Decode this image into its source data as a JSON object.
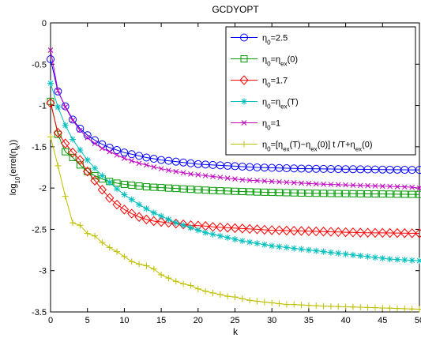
{
  "chart_data": {
    "type": "line",
    "title": "GCDYOPT",
    "xlabel": "k",
    "ylabel": "log10(errel(ηk))",
    "xlim": [
      0,
      50
    ],
    "ylim": [
      -3.5,
      0
    ],
    "xticks": [
      0,
      5,
      10,
      15,
      20,
      25,
      30,
      35,
      40,
      45,
      50
    ],
    "yticks": [
      0,
      -0.5,
      -1,
      -1.5,
      -2,
      -2.5,
      -3,
      -3.5
    ],
    "grid": false,
    "legend_position": "top-right",
    "x": [
      0,
      1,
      2,
      3,
      4,
      5,
      6,
      7,
      8,
      9,
      10,
      11,
      12,
      13,
      14,
      15,
      16,
      17,
      18,
      19,
      20,
      21,
      22,
      23,
      24,
      25,
      26,
      27,
      28,
      29,
      30,
      31,
      32,
      33,
      34,
      35,
      36,
      37,
      38,
      39,
      40,
      41,
      42,
      43,
      44,
      45,
      46,
      47,
      48,
      49,
      50
    ],
    "series": [
      {
        "name": "η0=2.5",
        "color": "#0000ff",
        "marker": "circle",
        "values": [
          -0.44,
          -0.83,
          -1.01,
          -1.17,
          -1.28,
          -1.36,
          -1.42,
          -1.47,
          -1.51,
          -1.54,
          -1.57,
          -1.59,
          -1.61,
          -1.63,
          -1.645,
          -1.66,
          -1.67,
          -1.68,
          -1.69,
          -1.7,
          -1.71,
          -1.715,
          -1.72,
          -1.725,
          -1.73,
          -1.735,
          -1.74,
          -1.745,
          -1.75,
          -1.752,
          -1.755,
          -1.757,
          -1.76,
          -1.762,
          -1.764,
          -1.766,
          -1.767,
          -1.768,
          -1.769,
          -1.77,
          -1.771,
          -1.772,
          -1.773,
          -1.774,
          -1.775,
          -1.776,
          -1.777,
          -1.778,
          -1.779,
          -1.78,
          -1.78
        ]
      },
      {
        "name": "η0=ηex(0)",
        "color": "#009900",
        "marker": "square",
        "values": [
          -0.95,
          -1.35,
          -1.56,
          -1.63,
          -1.72,
          -1.8,
          -1.85,
          -1.89,
          -1.92,
          -1.94,
          -1.955,
          -1.965,
          -1.975,
          -1.985,
          -1.99,
          -1.995,
          -2.0,
          -2.005,
          -2.01,
          -2.015,
          -2.02,
          -2.025,
          -2.03,
          -2.033,
          -2.036,
          -2.039,
          -2.042,
          -2.045,
          -2.048,
          -2.05,
          -2.052,
          -2.054,
          -2.056,
          -2.058,
          -2.06,
          -2.062,
          -2.063,
          -2.064,
          -2.065,
          -2.066,
          -2.067,
          -2.068,
          -2.069,
          -2.07,
          -2.071,
          -2.072,
          -2.073,
          -2.074,
          -2.075,
          -2.076,
          -2.077
        ]
      },
      {
        "name": "η0=1.7",
        "color": "#ff0000",
        "marker": "diamond",
        "values": [
          -0.97,
          -1.33,
          -1.46,
          -1.57,
          -1.66,
          -1.8,
          -1.91,
          -2.02,
          -2.12,
          -2.2,
          -2.26,
          -2.31,
          -2.35,
          -2.38,
          -2.4,
          -2.41,
          -2.42,
          -2.43,
          -2.44,
          -2.45,
          -2.455,
          -2.46,
          -2.47,
          -2.475,
          -2.48,
          -2.485,
          -2.49,
          -2.495,
          -2.5,
          -2.505,
          -2.51,
          -2.512,
          -2.515,
          -2.517,
          -2.52,
          -2.522,
          -2.525,
          -2.527,
          -2.53,
          -2.532,
          -2.535,
          -2.537,
          -2.54,
          -2.541,
          -2.542,
          -2.543,
          -2.544,
          -2.545,
          -2.546,
          -2.547,
          -2.548
        ]
      },
      {
        "name": "η0=ηex(T)",
        "color": "#00bfbf",
        "marker": "asterisk",
        "values": [
          -0.73,
          -1.02,
          -1.24,
          -1.41,
          -1.54,
          -1.66,
          -1.76,
          -1.85,
          -1.93,
          -2.01,
          -2.08,
          -2.14,
          -2.2,
          -2.25,
          -2.3,
          -2.34,
          -2.38,
          -2.42,
          -2.45,
          -2.48,
          -2.51,
          -2.54,
          -2.56,
          -2.58,
          -2.6,
          -2.62,
          -2.64,
          -2.655,
          -2.67,
          -2.685,
          -2.7,
          -2.71,
          -2.72,
          -2.73,
          -2.74,
          -2.75,
          -2.76,
          -2.77,
          -2.78,
          -2.79,
          -2.8,
          -2.81,
          -2.82,
          -2.83,
          -2.84,
          -2.85,
          -2.86,
          -2.865,
          -2.87,
          -2.875,
          -2.88
        ]
      },
      {
        "name": "η0=1",
        "color": "#bf00bf",
        "marker": "cross",
        "values": [
          -0.33,
          -0.82,
          -1.02,
          -1.18,
          -1.3,
          -1.39,
          -1.46,
          -1.52,
          -1.56,
          -1.6,
          -1.64,
          -1.67,
          -1.7,
          -1.72,
          -1.745,
          -1.765,
          -1.785,
          -1.8,
          -1.815,
          -1.83,
          -1.84,
          -1.85,
          -1.86,
          -1.87,
          -1.88,
          -1.89,
          -1.9,
          -1.905,
          -1.91,
          -1.915,
          -1.92,
          -1.925,
          -1.93,
          -1.935,
          -1.94,
          -1.945,
          -1.95,
          -1.953,
          -1.956,
          -1.959,
          -1.962,
          -1.965,
          -1.968,
          -1.971,
          -1.974,
          -1.977,
          -1.98,
          -1.983,
          -1.986,
          -1.99,
          -2.0
        ]
      },
      {
        "name": "η0=[ηex(T)−ηex(0)] t /T+ηex(0)",
        "color": "#bfbf00",
        "marker": "plus",
        "values": [
          -1.38,
          -1.73,
          -2.1,
          -2.42,
          -2.45,
          -2.55,
          -2.58,
          -2.66,
          -2.72,
          -2.77,
          -2.83,
          -2.89,
          -2.92,
          -2.94,
          -2.98,
          -3.05,
          -3.09,
          -3.13,
          -3.16,
          -3.18,
          -3.22,
          -3.25,
          -3.27,
          -3.29,
          -3.31,
          -3.32,
          -3.34,
          -3.36,
          -3.37,
          -3.38,
          -3.39,
          -3.4,
          -3.41,
          -3.41,
          -3.415,
          -3.42,
          -3.425,
          -3.43,
          -3.432,
          -3.435,
          -3.438,
          -3.44,
          -3.443,
          -3.446,
          -3.449,
          -3.452,
          -3.455,
          -3.458,
          -3.461,
          -3.464,
          -3.467
        ]
      }
    ]
  }
}
